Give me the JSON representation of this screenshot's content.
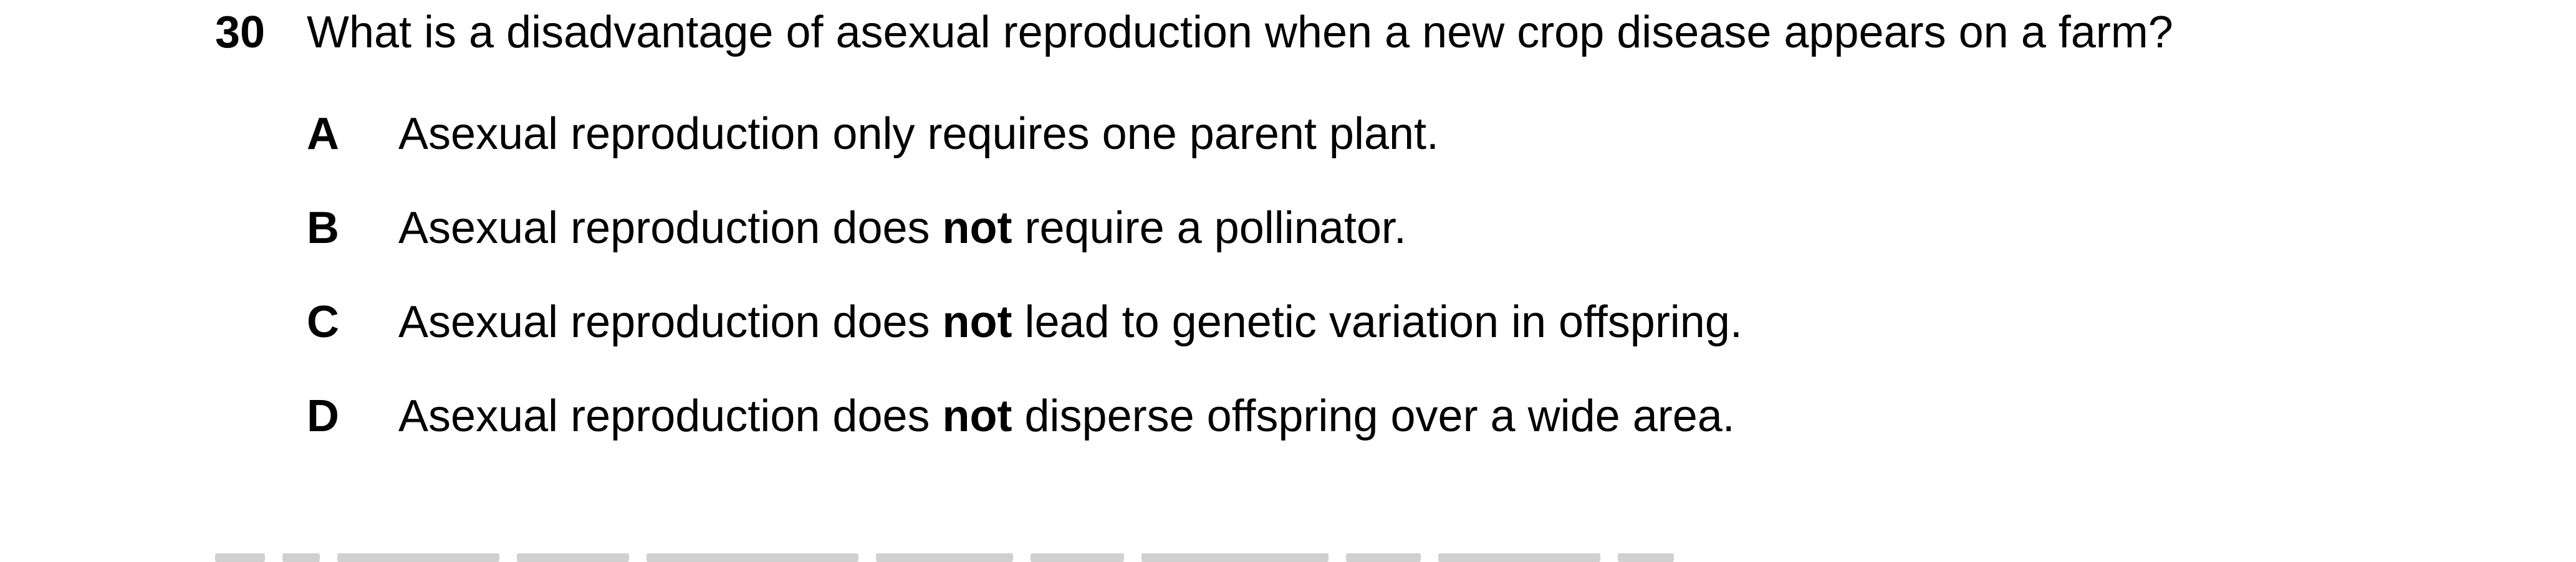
{
  "question": {
    "number": "30",
    "text": "What is a disadvantage of asexual reproduction when a new crop disease appears on a farm?"
  },
  "options": [
    {
      "letter": "A",
      "text_before": "Asexual reproduction only requires one parent plant.",
      "emphasis": "",
      "text_after": ""
    },
    {
      "letter": "B",
      "text_before": "Asexual reproduction does ",
      "emphasis": "not",
      "text_after": " require a pollinator."
    },
    {
      "letter": "C",
      "text_before": "Asexual reproduction does ",
      "emphasis": "not",
      "text_after": " lead to genetic variation in offspring."
    },
    {
      "letter": "D",
      "text_before": "Asexual reproduction does ",
      "emphasis": "not",
      "text_after": " disperse offspring over a wide area."
    }
  ]
}
